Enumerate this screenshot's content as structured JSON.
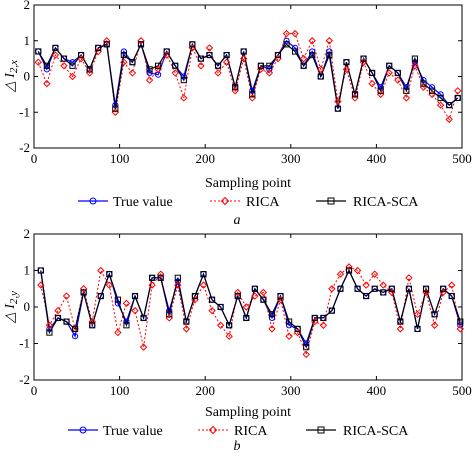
{
  "chart_data": [
    {
      "type": "line",
      "panel_label": "a",
      "xlabel": "Sampling point",
      "ylabel": "△ I2,x",
      "ylabel_main": "I",
      "ylabel_sub": "2,x",
      "xlim": [
        0,
        500
      ],
      "ylim": [
        -2,
        2
      ],
      "xticks": [
        0,
        100,
        200,
        300,
        400,
        500
      ],
      "yticks": [
        -2,
        -1,
        0,
        1,
        2
      ],
      "legend_position": "bottom",
      "series": [
        {
          "name": "True value",
          "color": "#0000ff",
          "style": "solid",
          "marker": "circle",
          "x": [
            5,
            15,
            25,
            35,
            45,
            55,
            65,
            75,
            85,
            95,
            105,
            115,
            125,
            135,
            145,
            155,
            165,
            175,
            185,
            195,
            205,
            215,
            225,
            235,
            245,
            255,
            265,
            275,
            285,
            295,
            305,
            315,
            325,
            335,
            345,
            355,
            365,
            375,
            385,
            395,
            405,
            415,
            425,
            435,
            445,
            455,
            465,
            475,
            485,
            495
          ],
          "y": [
            0.7,
            0.2,
            0.8,
            0.5,
            0.4,
            0.6,
            0.2,
            0.8,
            0.9,
            -0.8,
            0.7,
            0.4,
            0.9,
            0.1,
            0.05,
            0.7,
            0.3,
            0.0,
            0.9,
            0.5,
            0.6,
            0.3,
            0.6,
            -0.3,
            0.7,
            -0.4,
            0.3,
            0.2,
            0.6,
            1.0,
            0.8,
            0.3,
            0.7,
            0.0,
            0.7,
            -0.9,
            0.4,
            -0.5,
            0.5,
            0.1,
            -0.3,
            0.3,
            0.1,
            -0.3,
            0.4,
            -0.1,
            -0.3,
            -0.5,
            -0.8,
            -0.6
          ]
        },
        {
          "name": "RICA",
          "color": "#ff0000",
          "style": "dotted",
          "marker": "diamond",
          "x": [
            5,
            15,
            25,
            35,
            45,
            55,
            65,
            75,
            85,
            95,
            105,
            115,
            125,
            135,
            145,
            155,
            165,
            175,
            185,
            195,
            205,
            215,
            225,
            235,
            245,
            255,
            265,
            275,
            285,
            295,
            305,
            315,
            325,
            335,
            345,
            355,
            365,
            375,
            385,
            395,
            405,
            415,
            425,
            435,
            445,
            455,
            465,
            475,
            485,
            495
          ],
          "y": [
            0.4,
            -0.2,
            0.6,
            0.3,
            0.0,
            0.5,
            0.1,
            0.7,
            1.0,
            -1.0,
            0.4,
            0.1,
            1.0,
            -0.1,
            0.2,
            0.6,
            0.1,
            -0.6,
            0.8,
            0.3,
            0.8,
            0.1,
            0.4,
            -0.4,
            0.5,
            -0.6,
            0.2,
            0.1,
            0.5,
            1.2,
            1.2,
            0.5,
            1.0,
            0.2,
            1.0,
            -0.7,
            0.2,
            -0.6,
            0.4,
            -0.2,
            -0.5,
            0.1,
            -0.1,
            -0.6,
            0.3,
            -0.3,
            -0.5,
            -0.8,
            -1.2,
            -0.4
          ]
        },
        {
          "name": "RICA-SCA",
          "color": "#000000",
          "style": "solid",
          "marker": "square",
          "x": [
            5,
            15,
            25,
            35,
            45,
            55,
            65,
            75,
            85,
            95,
            105,
            115,
            125,
            135,
            145,
            155,
            165,
            175,
            185,
            195,
            205,
            215,
            225,
            235,
            245,
            255,
            265,
            275,
            285,
            295,
            305,
            315,
            325,
            335,
            345,
            355,
            365,
            375,
            385,
            395,
            405,
            415,
            425,
            435,
            445,
            455,
            465,
            475,
            485,
            495
          ],
          "y": [
            0.7,
            0.3,
            0.8,
            0.5,
            0.3,
            0.6,
            0.2,
            0.8,
            0.9,
            -0.9,
            0.6,
            0.4,
            0.9,
            0.2,
            0.3,
            0.7,
            0.3,
            -0.1,
            0.9,
            0.5,
            0.6,
            0.3,
            0.6,
            -0.3,
            0.7,
            -0.5,
            0.3,
            0.3,
            0.6,
            0.9,
            0.7,
            0.3,
            0.6,
            0.0,
            0.6,
            -0.9,
            0.4,
            -0.5,
            0.5,
            0.1,
            -0.4,
            0.3,
            0.1,
            -0.4,
            0.5,
            -0.2,
            -0.4,
            -0.6,
            -0.8,
            -0.6
          ]
        }
      ]
    },
    {
      "type": "line",
      "panel_label": "b",
      "xlabel": "Sampling point",
      "ylabel": "△ I2,y",
      "ylabel_main": "I",
      "ylabel_sub": "2,y",
      "xlim": [
        0,
        500
      ],
      "ylim": [
        -2,
        2
      ],
      "xticks": [
        0,
        100,
        200,
        300,
        400,
        500
      ],
      "yticks": [
        -2,
        -1,
        0,
        1,
        2
      ],
      "legend_position": "bottom",
      "series": [
        {
          "name": "True value",
          "color": "#0000ff",
          "style": "solid",
          "marker": "circle",
          "x": [
            8,
            18,
            28,
            38,
            48,
            58,
            68,
            78,
            88,
            98,
            108,
            118,
            128,
            138,
            148,
            158,
            168,
            178,
            188,
            198,
            208,
            218,
            228,
            238,
            248,
            258,
            268,
            278,
            288,
            298,
            308,
            318,
            328,
            338,
            348,
            358,
            368,
            378,
            388,
            398,
            408,
            418,
            428,
            438,
            448,
            458,
            468,
            478,
            488,
            498
          ],
          "y": [
            1.0,
            -0.6,
            -0.3,
            -0.4,
            -0.8,
            0.4,
            -0.5,
            0.3,
            0.9,
            0.1,
            -0.4,
            0.3,
            -0.3,
            0.8,
            0.8,
            -0.1,
            0.7,
            -0.4,
            0.3,
            0.9,
            0.2,
            0.0,
            -0.5,
            0.3,
            -0.3,
            0.5,
            0.2,
            -0.3,
            0.3,
            -0.5,
            -0.6,
            -1.0,
            -0.3,
            -0.3,
            -0.1,
            0.5,
            1.0,
            0.5,
            0.3,
            0.5,
            0.4,
            0.5,
            -0.4,
            0.5,
            -0.6,
            0.5,
            -0.2,
            0.5,
            0.3,
            -0.5
          ]
        },
        {
          "name": "RICA",
          "color": "#ff0000",
          "style": "dotted",
          "marker": "diamond",
          "x": [
            8,
            18,
            28,
            38,
            48,
            58,
            68,
            78,
            88,
            98,
            108,
            118,
            128,
            138,
            148,
            158,
            168,
            178,
            188,
            198,
            208,
            218,
            228,
            238,
            248,
            258,
            268,
            278,
            288,
            298,
            308,
            318,
            328,
            338,
            348,
            358,
            368,
            378,
            388,
            398,
            408,
            418,
            428,
            438,
            448,
            458,
            468,
            478,
            488,
            498
          ],
          "y": [
            0.6,
            -0.5,
            -0.1,
            0.3,
            -0.6,
            0.5,
            -0.4,
            1.0,
            0.6,
            -0.7,
            0.1,
            -0.1,
            -1.1,
            0.6,
            0.9,
            -0.3,
            0.6,
            -0.6,
            0.2,
            0.6,
            -0.1,
            -0.5,
            -0.8,
            0.4,
            0.0,
            0.3,
            0.4,
            -0.6,
            0.2,
            -0.8,
            -0.7,
            -1.3,
            -0.4,
            -0.5,
            0.5,
            0.9,
            1.1,
            1.0,
            0.6,
            0.9,
            0.6,
            0.4,
            -0.6,
            0.8,
            -0.2,
            0.4,
            -0.5,
            0.4,
            0.6,
            -0.6
          ]
        },
        {
          "name": "RICA-SCA",
          "color": "#000000",
          "style": "solid",
          "marker": "square",
          "x": [
            8,
            18,
            28,
            38,
            48,
            58,
            68,
            78,
            88,
            98,
            108,
            118,
            128,
            138,
            148,
            158,
            168,
            178,
            188,
            198,
            208,
            218,
            228,
            238,
            248,
            258,
            268,
            278,
            288,
            298,
            308,
            318,
            328,
            338,
            348,
            358,
            368,
            378,
            388,
            398,
            408,
            418,
            428,
            438,
            448,
            458,
            468,
            478,
            488,
            498
          ],
          "y": [
            1.0,
            -0.7,
            -0.3,
            -0.4,
            -0.6,
            0.4,
            -0.5,
            0.3,
            0.9,
            0.2,
            -0.5,
            0.3,
            -0.3,
            0.8,
            0.8,
            -0.2,
            0.8,
            -0.4,
            0.3,
            0.9,
            0.2,
            0.0,
            -0.5,
            0.3,
            -0.3,
            0.5,
            0.2,
            -0.2,
            0.3,
            -0.4,
            -0.6,
            -1.1,
            -0.3,
            -0.3,
            -0.1,
            0.5,
            1.0,
            0.5,
            0.3,
            0.5,
            0.4,
            0.5,
            -0.4,
            0.5,
            -0.6,
            0.5,
            -0.2,
            0.5,
            0.3,
            -0.4
          ]
        }
      ]
    }
  ]
}
